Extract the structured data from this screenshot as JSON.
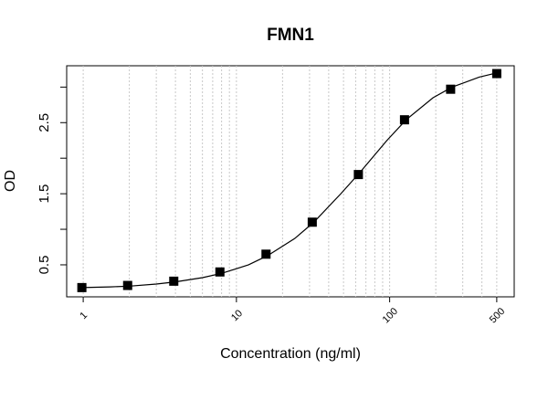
{
  "chart_data": {
    "type": "scatter",
    "title": "FMN1",
    "xlabel": "Concentration (ng/ml)",
    "ylabel": "OD",
    "x": [
      0.98,
      1.95,
      3.9,
      7.8,
      15.6,
      31.25,
      62.5,
      125,
      250,
      500
    ],
    "values": [
      0.18,
      0.21,
      0.27,
      0.4,
      0.65,
      1.1,
      1.77,
      2.54,
      2.97,
      3.19
    ],
    "color": "#000000",
    "curve": {
      "x": [
        0.98,
        1.5,
        2,
        3,
        4,
        6,
        8,
        12,
        16,
        24,
        32,
        48,
        64,
        96,
        128,
        192,
        256,
        384,
        500
      ],
      "y": [
        0.18,
        0.19,
        0.2,
        0.23,
        0.26,
        0.32,
        0.38,
        0.5,
        0.63,
        0.87,
        1.1,
        1.5,
        1.8,
        2.25,
        2.54,
        2.85,
        3.0,
        3.14,
        3.2
      ]
    },
    "log_x": true,
    "xlim": [
      0.78,
      650
    ],
    "ylim": [
      0.05,
      3.3
    ],
    "xticks": [
      1,
      10,
      100,
      500
    ],
    "yticks": [
      0.5,
      1.5,
      2.5
    ],
    "yticks_unlabeled": [
      1,
      2,
      3
    ],
    "xgrid": [
      1,
      2,
      3,
      4,
      5,
      6,
      7,
      8,
      9,
      10,
      20,
      30,
      40,
      50,
      60,
      70,
      80,
      90,
      100,
      200,
      300,
      400,
      500
    ]
  }
}
